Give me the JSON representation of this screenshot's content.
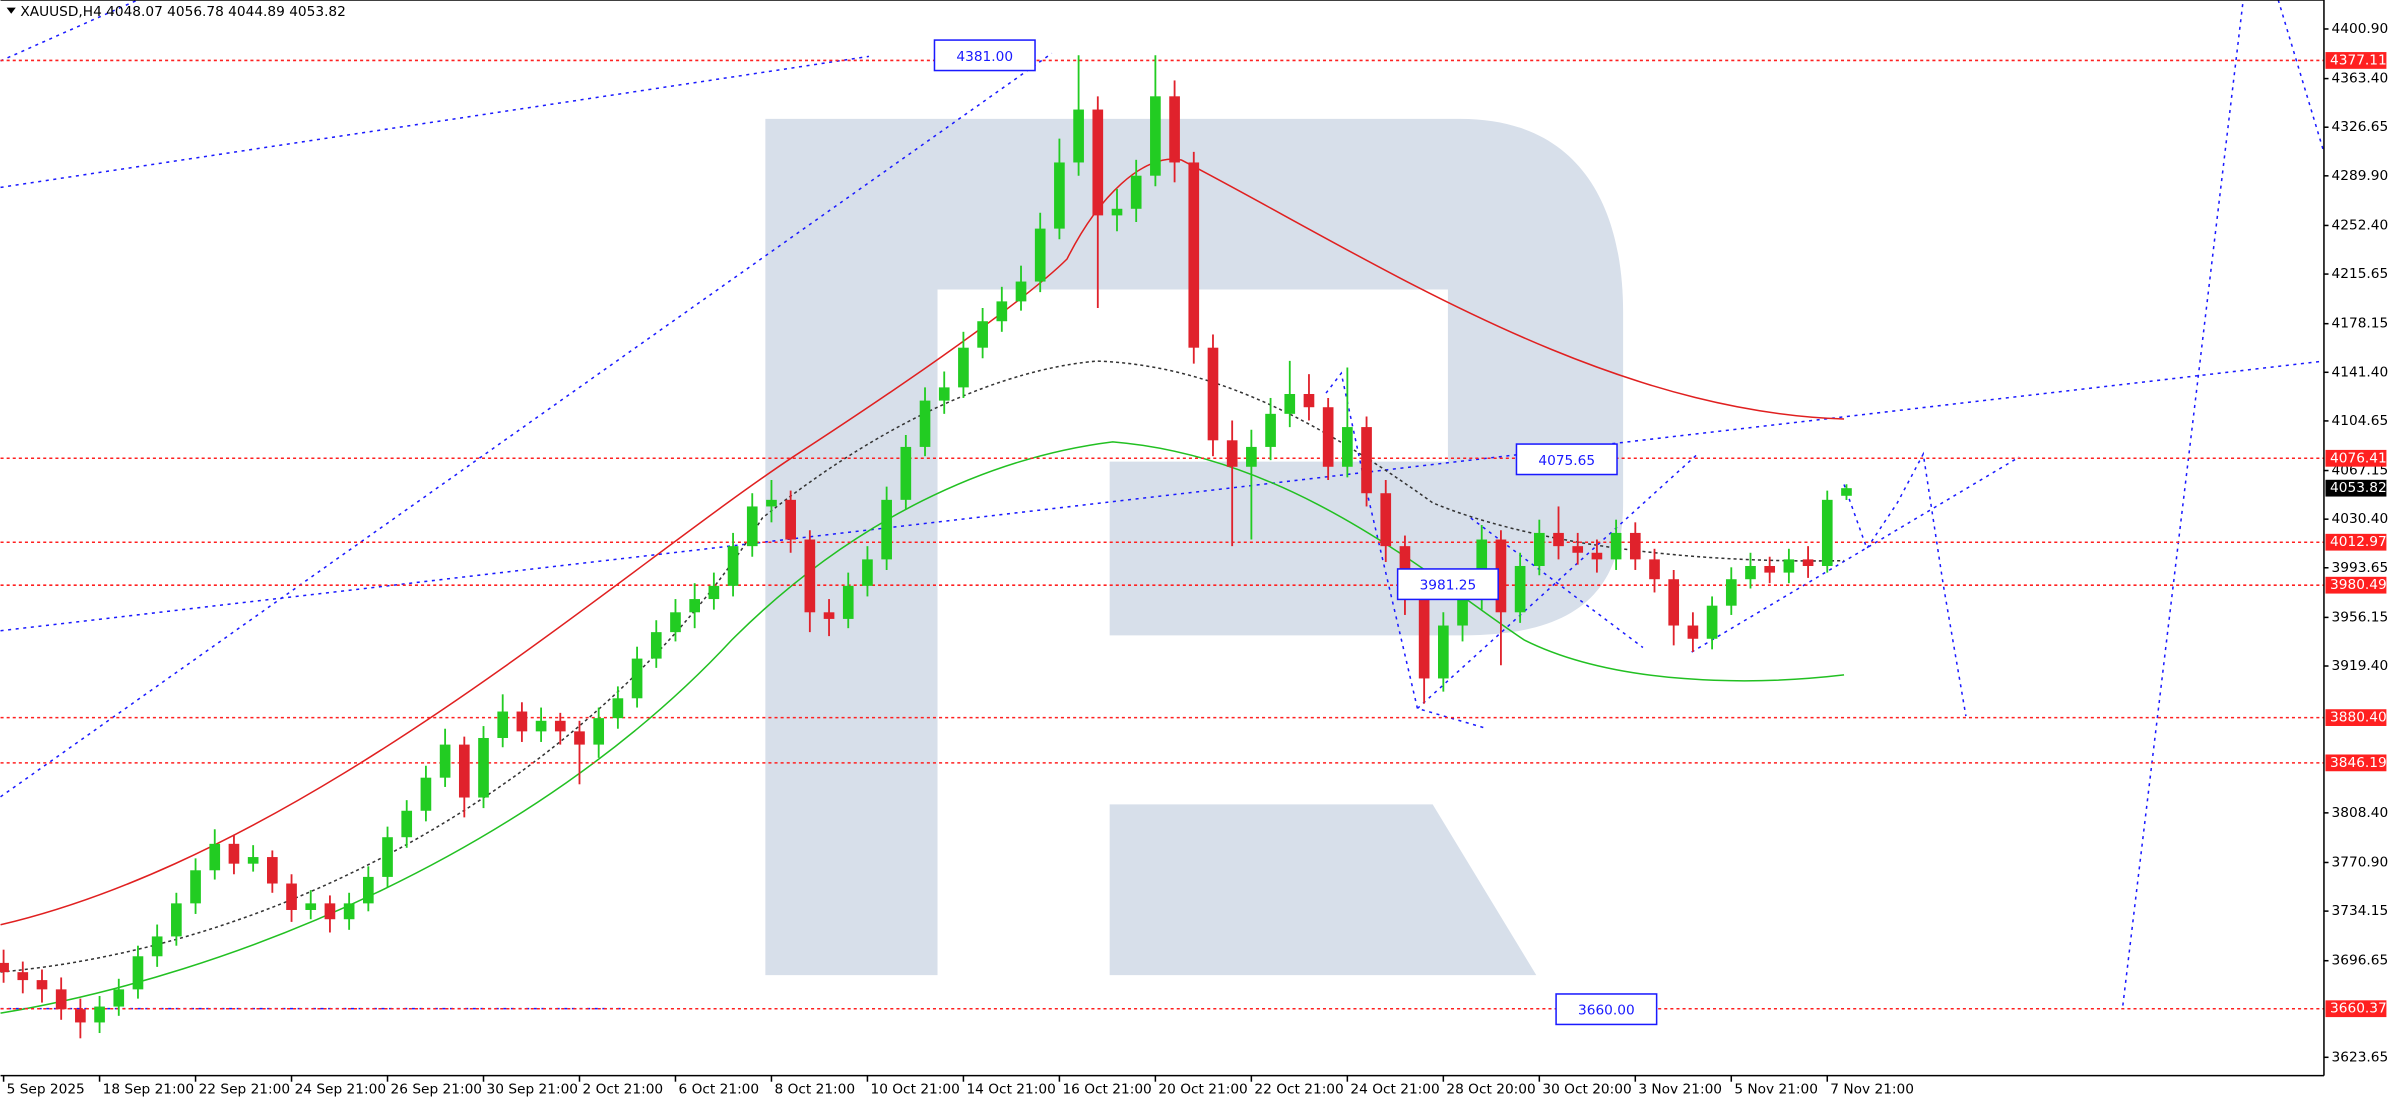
{
  "chart_data": {
    "type": "candlestick",
    "title": "XAUUSD,H4  4048.07 4056.78 4044.89 4053.82",
    "categories": [
      "5 Sep 2025",
      null,
      null,
      null,
      null,
      "18 Sep 21:00",
      null,
      null,
      null,
      null,
      "22 Sep 21:00",
      null,
      null,
      null,
      null,
      "24 Sep 21:00",
      null,
      null,
      null,
      null,
      "26 Sep 21:00",
      null,
      null,
      null,
      null,
      "30 Sep 21:00",
      null,
      null,
      null,
      null,
      "2 Oct 21:00",
      null,
      null,
      null,
      null,
      "6 Oct 21:00",
      null,
      null,
      null,
      null,
      "8 Oct 21:00",
      null,
      null,
      null,
      null,
      "10 Oct 21:00",
      null,
      null,
      null,
      null,
      "14 Oct 21:00",
      null,
      null,
      null,
      null,
      "16 Oct 21:00",
      null,
      null,
      null,
      null,
      "20 Oct 21:00",
      null,
      null,
      null,
      null,
      "22 Oct 21:00",
      null,
      null,
      null,
      null,
      "24 Oct 21:00",
      null,
      null,
      null,
      null,
      "28 Oct 20:00",
      null,
      null,
      null,
      null,
      "30 Oct 20:00",
      null,
      null,
      null,
      null,
      "3 Nov 21:00",
      null,
      null,
      null,
      null,
      "5 Nov 21:00",
      null,
      null,
      null,
      null,
      "7 Nov 21:00",
      null
    ],
    "open": [
      3695,
      3688,
      3682,
      3675,
      3660,
      3650,
      3662,
      3675,
      3700,
      3715,
      3740,
      3765,
      3785,
      3770,
      3775,
      3755,
      3735,
      3740,
      3728,
      3740,
      3760,
      3790,
      3810,
      3835,
      3860,
      3820,
      3865,
      3885,
      3870,
      3878,
      3870,
      3860,
      3880,
      3895,
      3925,
      3945,
      3960,
      3970,
      3980,
      4010,
      4040,
      4045,
      4015,
      3960,
      3955,
      3980,
      4000,
      4045,
      4085,
      4120,
      4130,
      4160,
      4180,
      4195,
      4210,
      4250,
      4300,
      4340,
      4260,
      4265,
      4290,
      4350,
      4300,
      4160,
      4090,
      4070,
      4085,
      4110,
      4125,
      4115,
      4070,
      4100,
      4050,
      4010,
      3970,
      3910,
      3950,
      3970,
      4015,
      3960,
      3995,
      4020,
      4010,
      4005,
      4000,
      4020,
      4000,
      3985,
      3950,
      3940,
      3965,
      3985,
      3995,
      3990,
      4000,
      3995,
      4048.07
    ],
    "high": [
      3705,
      3696,
      3690,
      3684,
      3668,
      3670,
      3683,
      3708,
      3724,
      3748,
      3774,
      3796,
      3792,
      3784,
      3780,
      3762,
      3750,
      3746,
      3748,
      3768,
      3798,
      3818,
      3844,
      3872,
      3866,
      3874,
      3898,
      3892,
      3888,
      3884,
      3878,
      3888,
      3904,
      3934,
      3954,
      3970,
      3982,
      3990,
      4020,
      4050,
      4060,
      4052,
      4022,
      3970,
      3990,
      4010,
      4055,
      4094,
      4130,
      4142,
      4172,
      4190,
      4206,
      4222,
      4262,
      4318,
      4381,
      4350,
      4280,
      4302,
      4381,
      4362,
      4308,
      4170,
      4105,
      4098,
      4122,
      4150,
      4140,
      4122,
      4145,
      4108,
      4060,
      4018,
      3978,
      3960,
      3982,
      4026,
      4022,
      4005,
      4030,
      4040,
      4020,
      4015,
      4030,
      4028,
      4008,
      3992,
      3960,
      3972,
      3994,
      4005,
      4002,
      4008,
      4010,
      4052,
      4056.78
    ],
    "low": [
      3680,
      3672,
      3665,
      3652,
      3638,
      3642,
      3655,
      3668,
      3692,
      3708,
      3732,
      3758,
      3762,
      3764,
      3748,
      3726,
      3728,
      3718,
      3720,
      3734,
      3752,
      3782,
      3802,
      3828,
      3805,
      3812,
      3858,
      3862,
      3862,
      3860,
      3830,
      3850,
      3872,
      3888,
      3918,
      3938,
      3948,
      3962,
      3972,
      4002,
      4028,
      4005,
      3945,
      3942,
      3948,
      3972,
      3992,
      4038,
      4078,
      4110,
      4122,
      4152,
      4172,
      4188,
      4202,
      4242,
      4290,
      4190,
      4248,
      4255,
      4282,
      4285,
      4148,
      4078,
      4010,
      4015,
      4075,
      4100,
      4105,
      4060,
      4062,
      4040,
      3998,
      3958,
      3891,
      3900,
      3938,
      3962,
      3920,
      3952,
      3988,
      4000,
      3996,
      3990,
      3992,
      3992,
      3975,
      3935,
      3930,
      3932,
      3958,
      3978,
      3982,
      3982,
      3986,
      3990,
      4044.89
    ],
    "close": [
      3688,
      3682,
      3675,
      3660,
      3650,
      3662,
      3675,
      3700,
      3715,
      3740,
      3765,
      3785,
      3770,
      3775,
      3755,
      3735,
      3740,
      3728,
      3740,
      3760,
      3790,
      3810,
      3835,
      3860,
      3820,
      3865,
      3885,
      3870,
      3878,
      3870,
      3860,
      3880,
      3895,
      3925,
      3945,
      3960,
      3970,
      3980,
      4010,
      4040,
      4045,
      4015,
      3960,
      3955,
      3980,
      4000,
      4045,
      4085,
      4120,
      4130,
      4160,
      4180,
      4195,
      4210,
      4250,
      4300,
      4340,
      4260,
      4265,
      4290,
      4350,
      4300,
      4160,
      4090,
      4070,
      4085,
      4110,
      4125,
      4115,
      4070,
      4100,
      4050,
      4010,
      3970,
      3910,
      3950,
      3970,
      4015,
      3960,
      3995,
      4020,
      4010,
      4005,
      4000,
      4020,
      4000,
      3985,
      3950,
      3940,
      3965,
      3985,
      3995,
      3990,
      4000,
      3995,
      4045,
      4053.82
    ],
    "up_color": "#22cc22",
    "down_color": "#e0222c",
    "ylim": [
      3609.8,
      4422.8
    ],
    "yticks": [
      {
        "value": 4400.9,
        "label": "4400.90"
      },
      {
        "value": 4363.4,
        "label": "4363.40"
      },
      4326.65,
      {
        "value": 4289.9,
        "label": "4289.90"
      },
      {
        "value": 4252.4,
        "label": "4252.40"
      },
      4215.65,
      4178.15,
      {
        "value": 4141.4,
        "label": "4141.40"
      },
      4104.65,
      4067.15,
      {
        "value": 4030.4,
        "label": "4030.40"
      },
      3993.65,
      3956.15,
      {
        "value": 3919.4,
        "label": "3919.40"
      },
      {
        "value": 3808.4,
        "label": "3808.40"
      },
      {
        "value": 3770.9,
        "label": "3770.90"
      },
      3734.15,
      3696.65,
      3623.65
    ],
    "levels": [
      4377.11,
      4076.41,
      4012.97,
      3980.49,
      {
        "value": 3880.4,
        "label": "3880.40"
      },
      3846.19,
      3660.37
    ],
    "level_color": "#ff2020",
    "current_price": 4053.82,
    "annotations": [
      {
        "value": 4381,
        "label": "4381.00"
      },
      {
        "value": 4075.65,
        "label": "4075.65"
      },
      {
        "value": 3981.25,
        "label": "3981.25"
      },
      {
        "value": 3660,
        "label": "3660.00"
      }
    ],
    "annotation_color": "#1a1aff"
  }
}
